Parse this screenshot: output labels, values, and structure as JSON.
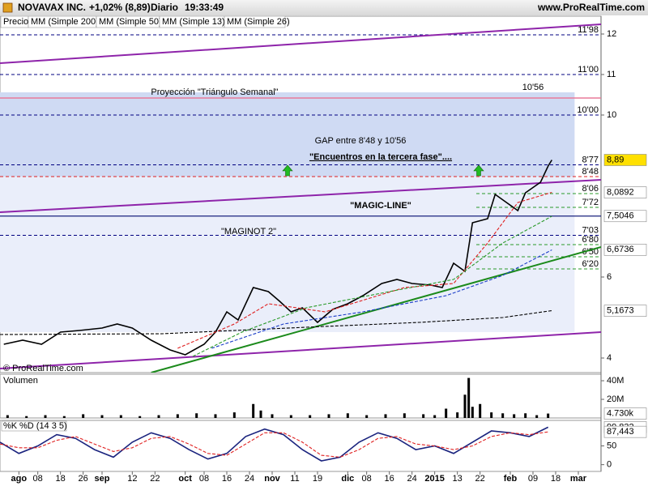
{
  "header": {
    "title": "NOVAVAX INC.",
    "change": "+1,02% (8,89)",
    "period": "Diario",
    "time": "19:33:49",
    "site": "www.ProRealTime.com",
    "watermark": "© ProRealTime.com"
  },
  "chart_data": [
    {
      "type": "line",
      "xlim": [
        -5,
        154
      ],
      "ylim": [
        3.64,
        12.4
      ],
      "yticks": [
        4,
        6,
        10,
        11,
        12
      ],
      "series": [
        {
          "name": "Precio",
          "color": "#000000",
          "x": [
            -4,
            1,
            6,
            11,
            16,
            22,
            26,
            30,
            35,
            40,
            44,
            49,
            52,
            55,
            58,
            62,
            66,
            69,
            72,
            75,
            79,
            83,
            87,
            91,
            96,
            100,
            104,
            109,
            112,
            115,
            118,
            120,
            124,
            126,
            129,
            132,
            134,
            138,
            140,
            141
          ],
          "values": [
            4.34,
            4.44,
            4.34,
            4.64,
            4.68,
            4.74,
            4.84,
            4.74,
            4.44,
            4.2,
            4.08,
            4.34,
            4.64,
            5.14,
            4.94,
            5.74,
            5.64,
            5.4,
            5.14,
            5.24,
            4.88,
            5.2,
            5.34,
            5.54,
            5.84,
            5.94,
            5.84,
            5.8,
            5.74,
            6.34,
            6.14,
            7.34,
            7.44,
            8.04,
            7.84,
            7.64,
            8.08,
            8.34,
            8.74,
            8.89
          ]
        },
        {
          "name": "MM (Simple 200)",
          "color": "#000000",
          "dashed": true,
          "x": [
            -5,
            38,
            76,
            106,
            128,
            141
          ],
          "values": [
            4.58,
            4.6,
            4.76,
            4.88,
            5.0,
            5.17
          ]
        },
        {
          "name": "MM (Simple 50)",
          "color": "#1a3cc8",
          "dashed": true,
          "x": [
            51,
            70,
            91,
            113,
            128,
            141
          ],
          "values": [
            4.24,
            4.84,
            5.14,
            5.54,
            6.04,
            6.67
          ]
        },
        {
          "name": "MM (Simple 13)",
          "color": "#e02020",
          "dashed": true,
          "x": [
            42,
            57,
            66,
            81,
            102,
            115,
            124,
            132,
            141
          ],
          "values": [
            4.24,
            4.84,
            5.34,
            5.14,
            5.74,
            5.84,
            6.84,
            7.84,
            8.09
          ]
        },
        {
          "name": "MM (Simple 26)",
          "color": "#2a9a2a",
          "dashed": true,
          "x": [
            46,
            59,
            76,
            98,
            115,
            128,
            141
          ],
          "values": [
            4.04,
            4.64,
            5.24,
            5.64,
            5.94,
            6.84,
            7.5
          ]
        }
      ],
      "zones": [
        {
          "from": 4.64,
          "to": 10.56,
          "color": "#eaeefa"
        },
        {
          "from": 8.48,
          "to": 10.56,
          "color": "#cfdaf3",
          "label": "10'56"
        }
      ],
      "projection": {
        "value": 10.42,
        "label": "Proyección \"Triángulo Semanal\"",
        "color": "#e87a9a"
      },
      "levels": [
        {
          "value": 11.98,
          "label": "11'98",
          "color": "#000080"
        },
        {
          "value": 11.0,
          "label": "11'00",
          "color": "#000080"
        },
        {
          "value": 10.0,
          "label": "10'00",
          "color": "#000080"
        },
        {
          "value": 8.77,
          "label": "8'77",
          "color": "#000080"
        },
        {
          "value": 8.48,
          "label": "8'48",
          "color": "#e02020"
        },
        {
          "value": 8.06,
          "label": "8'06",
          "color": "#2a9a2a",
          "x_start": 121
        },
        {
          "value": 7.72,
          "label": "7'72",
          "color": "#2a9a2a",
          "x_start": 121
        },
        {
          "value": 7.03,
          "label": "7'03",
          "color": "#000080"
        },
        {
          "value": 6.8,
          "label": "6'80",
          "color": "#2a9a2a",
          "x_start": 121
        },
        {
          "value": 6.5,
          "label": "6'50",
          "color": "#2a9a2a",
          "x_start": 121
        },
        {
          "value": 6.2,
          "label": "6'20",
          "color": "#2a9a2a",
          "x_start": 121
        },
        {
          "value": 7.5046,
          "color": "#1a237e",
          "solid": true
        }
      ],
      "trendlines": [
        {
          "x": [
            -5,
            154
          ],
          "y": [
            11.28,
            12.24
          ],
          "color": "#8e24aa"
        },
        {
          "x": [
            -5,
            154
          ],
          "y": [
            7.6,
            8.4
          ],
          "color": "#8e24aa"
        },
        {
          "x": [
            -5,
            154
          ],
          "y": [
            3.74,
            4.64
          ],
          "color": "#8e24aa"
        },
        {
          "x": [
            35,
            154
          ],
          "y": [
            3.64,
            6.74
          ],
          "color": "#1b8a1b"
        }
      ],
      "annotations": [
        {
          "text": "GAP entre 8'48 y 10'56",
          "color": "#000080"
        },
        {
          "text": "\"Encuentros en la tercera fase\"....",
          "color": "#e01010",
          "bold": true
        },
        {
          "text": "\"MAGIC-LINE\"",
          "color": "#000080",
          "bold": true
        },
        {
          "text": "\"MAGINOT 2\"",
          "color": "#e03030"
        }
      ],
      "value_tags": [
        {
          "value": 8.89,
          "label": "8,89",
          "color": "#000000",
          "background": "#ffe000"
        },
        {
          "value": 8.0892,
          "label": "8,0892",
          "color": "#e02020",
          "background": "#ffffff"
        },
        {
          "value": 7.5046,
          "label": "7,5046",
          "color": "#1a3cc8",
          "background": "#ffffff"
        },
        {
          "value": 6.6736,
          "label": "6,6736",
          "color": "#000080",
          "background": "#ffffff"
        },
        {
          "value": 5.1673,
          "label": "5,1673",
          "color": "#000000",
          "background": "#ffffff"
        }
      ]
    },
    {
      "type": "bar",
      "title": "Volumen",
      "color": "#000000",
      "xlim": [
        -5,
        154
      ],
      "ylim": [
        0,
        47000000
      ],
      "yticks": [
        {
          "value": 40000000,
          "label": "40M"
        },
        {
          "value": 20000000,
          "label": "20M"
        }
      ],
      "x": [
        -3,
        2,
        7,
        12,
        17,
        22,
        27,
        32,
        37,
        42,
        47,
        52,
        57,
        62,
        64,
        67,
        72,
        77,
        82,
        87,
        92,
        97,
        102,
        107,
        110,
        113,
        116,
        118,
        119,
        120,
        122,
        125,
        128,
        131,
        134,
        137,
        140
      ],
      "values": [
        3000000,
        2000000,
        3000000,
        2000000,
        4000000,
        3000000,
        3000000,
        2000000,
        3000000,
        4000000,
        5000000,
        4000000,
        6000000,
        15000000,
        8000000,
        4000000,
        3000000,
        3000000,
        4000000,
        5000000,
        3000000,
        4000000,
        5000000,
        4000000,
        3000000,
        10000000,
        6000000,
        25000000,
        43000000,
        12000000,
        15000000,
        6000000,
        5000000,
        4000000,
        5000000,
        3000000,
        4730000
      ],
      "value_tags": [
        {
          "value": 4730000,
          "label": "4.730k",
          "color": "#000000",
          "background": "#ffffff"
        }
      ]
    },
    {
      "type": "line",
      "xlim": [
        -5,
        154
      ],
      "ylim": [
        -18,
        118
      ],
      "yticks": [
        0,
        50
      ],
      "series": [
        {
          "name": "%K",
          "color": "#1a237e",
          "x": [
            -5,
            0,
            5,
            10,
            15,
            20,
            25,
            30,
            35,
            40,
            45,
            50,
            55,
            60,
            65,
            70,
            75,
            80,
            85,
            90,
            95,
            100,
            105,
            110,
            115,
            120,
            125,
            130,
            135,
            140
          ],
          "values": [
            60,
            30,
            50,
            80,
            70,
            40,
            20,
            60,
            85,
            70,
            40,
            15,
            30,
            75,
            95,
            80,
            40,
            10,
            20,
            60,
            85,
            70,
            40,
            50,
            30,
            60,
            90,
            85,
            75,
            99.832
          ]
        },
        {
          "name": "%D (14 3 5)",
          "color": "#e02020",
          "dashed": true,
          "x": [
            -5,
            0,
            5,
            10,
            15,
            20,
            25,
            30,
            35,
            40,
            45,
            50,
            55,
            60,
            65,
            70,
            75,
            80,
            85,
            90,
            95,
            100,
            105,
            110,
            115,
            120,
            125,
            130,
            135,
            140
          ],
          "values": [
            55,
            45,
            45,
            65,
            75,
            55,
            35,
            45,
            70,
            75,
            55,
            30,
            25,
            55,
            85,
            85,
            60,
            25,
            20,
            40,
            70,
            75,
            55,
            50,
            40,
            50,
            75,
            85,
            80,
            87.443
          ]
        }
      ],
      "value_tags": [
        {
          "value": 99.832,
          "label": "99,832",
          "color": "#000000",
          "background": "#ffffff"
        },
        {
          "value": 87.443,
          "label": "87,443",
          "color": "#e02020",
          "background": "#ffffff"
        }
      ],
      "xticks": [
        {
          "value": 0,
          "label": "ago"
        },
        {
          "value": 5,
          "label": "08"
        },
        {
          "value": 11,
          "label": "18"
        },
        {
          "value": 17,
          "label": "26"
        },
        {
          "value": 22,
          "label": "sep"
        },
        {
          "value": 30,
          "label": "12"
        },
        {
          "value": 36,
          "label": "22"
        },
        {
          "value": 44,
          "label": "oct"
        },
        {
          "value": 49,
          "label": "08"
        },
        {
          "value": 55,
          "label": "16"
        },
        {
          "value": 61,
          "label": "24"
        },
        {
          "value": 67,
          "label": "nov"
        },
        {
          "value": 73,
          "label": "11"
        },
        {
          "value": 79,
          "label": "19"
        },
        {
          "value": 87,
          "label": "dic"
        },
        {
          "value": 92,
          "label": "08"
        },
        {
          "value": 98,
          "label": "16"
        },
        {
          "value": 104,
          "label": "24"
        },
        {
          "value": 110,
          "label": "2015"
        },
        {
          "value": 116,
          "label": "13"
        },
        {
          "value": 122,
          "label": "22"
        },
        {
          "value": 130,
          "label": "feb"
        },
        {
          "value": 136,
          "label": "09"
        },
        {
          "value": 142,
          "label": "18"
        },
        {
          "value": 148,
          "label": "mar"
        }
      ]
    }
  ]
}
